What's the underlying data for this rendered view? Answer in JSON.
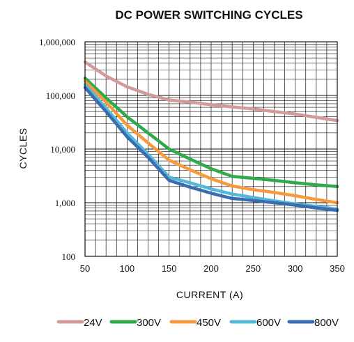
{
  "chart_data": {
    "type": "line",
    "title": "DC POWER SWITCHING CYCLES",
    "xlabel": "CURRENT (A)",
    "ylabel": "CYCLES",
    "xlim": [
      50,
      350
    ],
    "ylim": [
      100,
      1000000
    ],
    "y_scale": "log",
    "grid": true,
    "legend_position": "bottom",
    "x_ticks": [
      "50",
      "100",
      "150",
      "200",
      "250",
      "300",
      "350"
    ],
    "y_ticks": [
      "100",
      "1,000",
      "10,000",
      "100,000",
      "1,000,000"
    ],
    "x": [
      50,
      75,
      100,
      125,
      150,
      175,
      200,
      225,
      250,
      275,
      300,
      325,
      350
    ],
    "series": [
      {
        "name": "24V",
        "color": "#d49a9a",
        "values": [
          420000,
          230000,
          145000,
          105000,
          82000,
          75000,
          67000,
          61000,
          56000,
          50000,
          45000,
          39000,
          34000
        ]
      },
      {
        "name": "300V",
        "color": "#2eaa4a",
        "values": [
          210000,
          90000,
          40000,
          20000,
          10000,
          6500,
          4300,
          3100,
          2850,
          2600,
          2350,
          2150,
          2000
        ]
      },
      {
        "name": "450V",
        "color": "#f79a3c",
        "values": [
          185000,
          75000,
          28000,
          13000,
          6200,
          4100,
          2800,
          2050,
          1750,
          1550,
          1350,
          1150,
          1000
        ]
      },
      {
        "name": "600V",
        "color": "#55b8d8",
        "values": [
          160000,
          58000,
          20000,
          8000,
          3000,
          2350,
          1800,
          1450,
          1250,
          1080,
          950,
          850,
          760
        ]
      },
      {
        "name": "800V",
        "color": "#3a6db0",
        "values": [
          140000,
          50000,
          17000,
          7000,
          2600,
          1950,
          1500,
          1200,
          1100,
          1000,
          900,
          800,
          720
        ]
      }
    ]
  }
}
